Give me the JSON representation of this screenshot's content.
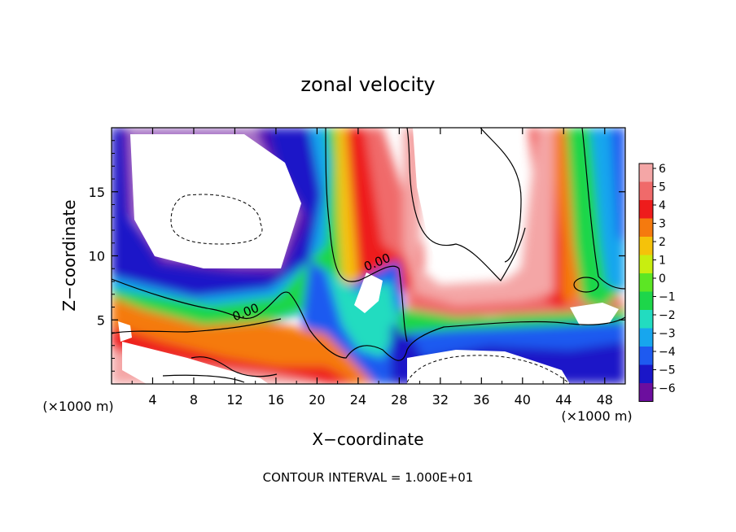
{
  "chart_data": {
    "type": "heatmap",
    "title": "zonal velocity",
    "xlabel": "X−coordinate",
    "ylabel": "Z−coordinate",
    "x_unit_left": "(×1000 m)",
    "x_unit_right": "(×1000 m)",
    "footer": "CONTOUR INTERVAL = 1.000E+01",
    "xlim": [
      0,
      50
    ],
    "ylim": [
      0,
      20
    ],
    "x_ticks": [
      4,
      8,
      12,
      16,
      20,
      24,
      28,
      32,
      36,
      40,
      44,
      48
    ],
    "y_ticks": [
      5,
      10,
      15
    ],
    "contour_labels": [
      {
        "text": "0.00",
        "x": 13.2,
        "y": 5.3
      },
      {
        "text": "0.00",
        "x": 26,
        "y": 9.2
      }
    ],
    "colorbar": {
      "ticks": [
        6,
        5,
        4,
        3,
        2,
        1,
        0,
        -1,
        -2,
        -3,
        -4,
        -5,
        -6
      ],
      "tick_labels": [
        "6",
        "5",
        "4",
        "3",
        "2",
        "1",
        "0",
        "−1",
        "−2",
        "−3",
        "−4",
        "−5",
        "−6"
      ],
      "colors": [
        "#f4a6a6",
        "#f06a6a",
        "#ee1c1c",
        "#f57a0e",
        "#f5c20a",
        "#c8ee10",
        "#5ce624",
        "#1dd64a",
        "#22dcc0",
        "#17a6ee",
        "#1e5af0",
        "#1a16c8",
        "#6c0e9e"
      ]
    }
  }
}
